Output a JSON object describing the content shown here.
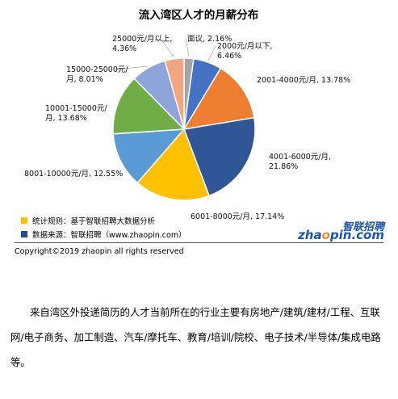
{
  "chart_data": {
    "type": "pie",
    "title": "流入湾区人才的月薪分布",
    "slices": [
      {
        "name": "面议",
        "value": 2.16,
        "color": "#A5A5A5",
        "label": [
          "面议, 2.16%"
        ]
      },
      {
        "name": "2000元/月以下",
        "value": 6.46,
        "color": "#4472C4",
        "label": [
          "2000元/月以下,",
          "6.46%"
        ]
      },
      {
        "name": "2001-4000元/月",
        "value": 13.78,
        "color": "#ED7D31",
        "label": [
          "2001-4000元/月, 13.78%"
        ]
      },
      {
        "name": "4001-6000元/月",
        "value": 21.86,
        "color": "#2F5597",
        "label": [
          "4001-6000元/月,",
          "21.86%"
        ]
      },
      {
        "name": "6001-8000元/月",
        "value": 17.14,
        "color": "#FFC000",
        "label": [
          "6001-8000元/月, 17.14%"
        ]
      },
      {
        "name": "8001-10000元/月",
        "value": 12.55,
        "color": "#5B9BD5",
        "label": [
          "8001-10000元/月, 12.55%"
        ]
      },
      {
        "name": "10001-15000元/月",
        "value": 13.68,
        "color": "#70AD47",
        "label": [
          "10001-15000元/",
          "月, 13.68%"
        ]
      },
      {
        "name": "15000-25000元/月",
        "value": 8.01,
        "color": "#8FA4D9",
        "label": [
          "15000-25000元/",
          "月, 8.01%"
        ]
      },
      {
        "name": "25000元/月以上",
        "value": 4.36,
        "color": "#F4A582",
        "label": [
          "25000元/月以上,",
          "4.36%"
        ]
      }
    ]
  },
  "notes": [
    {
      "text": "统计规则：基于智联招聘大数据分析",
      "color": "#FFC000"
    },
    {
      "text": "数据来源：智联招聘（www.zhaopin.com）",
      "color": "#1F4E9A"
    }
  ],
  "logo": {
    "top": "智联招聘",
    "bottom_a": "zha",
    "bottom_dot": "o",
    "bottom_b": "pin.com"
  },
  "copyright": "Copyright©2019 zhaopin all rights reserved",
  "paragraph": "来自湾区外投递简历的人才当前所在的行业主要有房地产/建筑/建材/工程、互联网/电子商务、加工制造、汽车/摩托车、教育/培训/院校、电子技术/半导体/集成电路等。"
}
